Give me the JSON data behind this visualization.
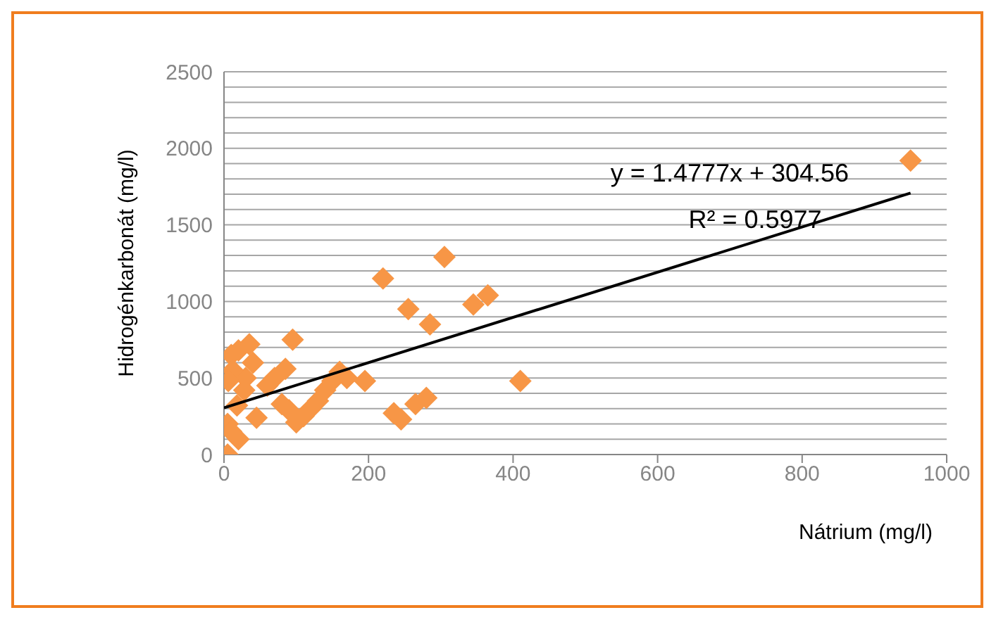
{
  "chart_data": {
    "type": "scatter",
    "xlabel": "Nátrium (mg/l)",
    "ylabel": "Hidrogénkarbonát (mg/l)",
    "xlim": [
      0,
      1000
    ],
    "xticks": [
      0,
      200,
      400,
      600,
      800,
      1000
    ],
    "ylim": [
      0,
      2500
    ],
    "yticks": [
      0,
      {
        "value": 100,
        "label": null
      },
      {
        "value": 200,
        "label": null
      },
      {
        "value": 300,
        "label": null
      },
      {
        "value": 400,
        "label": null
      },
      500,
      {
        "value": 600,
        "label": null
      },
      {
        "value": 700,
        "label": null
      },
      {
        "value": 800,
        "label": null
      },
      {
        "value": 900,
        "label": null
      },
      1000,
      {
        "value": 1100,
        "label": null
      },
      {
        "value": 1200,
        "label": null
      },
      {
        "value": 1300,
        "label": null
      },
      {
        "value": 1400,
        "label": null
      },
      1500,
      {
        "value": 1600,
        "label": null
      },
      {
        "value": 1700,
        "label": null
      },
      {
        "value": 1800,
        "label": null
      },
      {
        "value": 1900,
        "label": null
      },
      2000,
      {
        "value": 2100,
        "label": null
      },
      {
        "value": 2200,
        "label": null
      },
      {
        "value": 2300,
        "label": null
      },
      {
        "value": 2400,
        "label": null
      },
      2500
    ],
    "grid": "y",
    "legend": false,
    "annotations": [
      "y = 1.4777x + 304.56",
      "R² = 0.5977"
    ],
    "series": [
      {
        "type": "scatter",
        "marker": "diamond",
        "color": "#f79646",
        "x": [
          950,
          305,
          220,
          255,
          285,
          345,
          365,
          410,
          280,
          265,
          245,
          235,
          195,
          170,
          160,
          150,
          140,
          130,
          120,
          110,
          100,
          95,
          5,
          10,
          20,
          35,
          40,
          30,
          5,
          10,
          20,
          60,
          70,
          85,
          45,
          80,
          90,
          12,
          18,
          28,
          6
        ],
        "values": [
          1920,
          1290,
          1150,
          950,
          850,
          980,
          1040,
          480,
          370,
          330,
          230,
          270,
          480,
          500,
          540,
          480,
          420,
          350,
          300,
          250,
          210,
          750,
          0,
          650,
          680,
          720,
          600,
          500,
          200,
          150,
          100,
          450,
          500,
          560,
          240,
          330,
          290,
          550,
          320,
          420,
          480
        ]
      },
      {
        "type": "line",
        "marker": "none",
        "color": "#000000",
        "x": [
          0,
          950
        ],
        "values": [
          305,
          1708
        ]
      }
    ]
  }
}
